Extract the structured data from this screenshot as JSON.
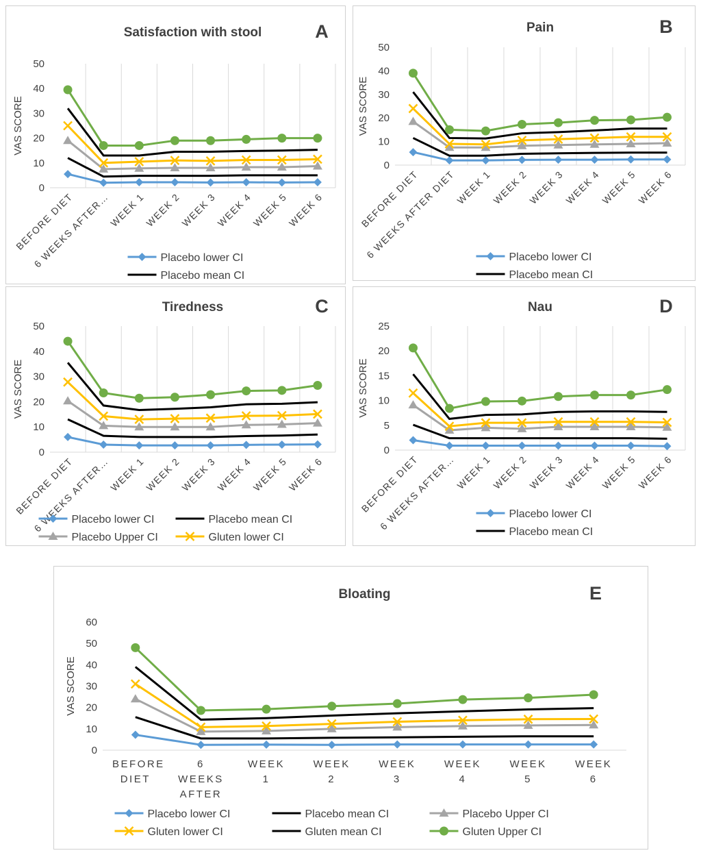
{
  "chart_data": [
    {
      "type": "line",
      "title": "Satisfaction with stool",
      "annotation": "A",
      "ylabel": "VAS SCORE",
      "categories": [
        "BEFORE DIET",
        "6 WEEKS AFTER…",
        "WEEK 1",
        "WEEK 2",
        "WEEK 3",
        "WEEK 4",
        "WEEK 5",
        "WEEK 6"
      ],
      "ylim": [
        0,
        50
      ],
      "yticks": [
        0,
        10,
        20,
        30,
        40,
        50
      ],
      "grid": "x",
      "series": [
        {
          "name": "Placebo lower CI",
          "color": "#5b9bd5",
          "marker": "diamond",
          "values": [
            5.5,
            2,
            2.2,
            2.2,
            2.1,
            2.2,
            2.1,
            2.2
          ]
        },
        {
          "name": "Placebo mean CI",
          "color": "#000000",
          "marker": "none",
          "values": [
            12,
            4.5,
            4.8,
            4.8,
            4.8,
            5,
            5,
            5
          ]
        },
        {
          "color": "#a5a5a5",
          "marker": "triangle",
          "values": [
            19,
            7.5,
            7.8,
            8,
            8,
            8.3,
            8.3,
            8.7
          ]
        },
        {
          "color": "#ffc000",
          "marker": "x",
          "values": [
            25,
            10,
            10.5,
            11,
            10.8,
            11.2,
            11.2,
            11.5
          ]
        },
        {
          "color": "#000000",
          "marker": "none",
          "values": [
            32,
            13,
            13,
            14.5,
            14.5,
            14.8,
            15,
            15.3
          ]
        },
        {
          "color": "#70ad47",
          "marker": "circle",
          "values": [
            39.5,
            17,
            17,
            19,
            19,
            19.5,
            20,
            20
          ]
        }
      ]
    },
    {
      "type": "line",
      "title": "Pain",
      "annotation": "B",
      "ylabel": "VAS SCORE",
      "categories": [
        "BEFORE DIET",
        "6 WEEKS AFTER DIET",
        "WEEK 1",
        "WEEK 2",
        "WEEK 3",
        "WEEK 4",
        "WEEK 5",
        "WEEK 6"
      ],
      "ylim": [
        0,
        50
      ],
      "yticks": [
        0,
        10,
        20,
        30,
        40,
        50
      ],
      "grid": "x",
      "series": [
        {
          "name": "Placebo lower CI",
          "color": "#5b9bd5",
          "marker": "diamond",
          "values": [
            5.5,
            2,
            2,
            2.2,
            2.3,
            2.3,
            2.4,
            2.4
          ]
        },
        {
          "name": "Placebo mean CI",
          "color": "#000000",
          "marker": "none",
          "values": [
            11.5,
            4,
            4,
            4.8,
            5,
            5.2,
            5.3,
            5.3
          ]
        },
        {
          "color": "#a5a5a5",
          "marker": "triangle",
          "values": [
            18.5,
            7.5,
            7.5,
            8.2,
            8.5,
            8.8,
            9,
            9.3
          ]
        },
        {
          "color": "#ffc000",
          "marker": "x",
          "values": [
            24,
            9,
            8.8,
            10.5,
            11,
            11.5,
            12,
            12
          ]
        },
        {
          "color": "#000000",
          "marker": "none",
          "values": [
            31,
            11.5,
            11.3,
            13.5,
            14,
            14.7,
            15.5,
            15.5
          ]
        },
        {
          "color": "#70ad47",
          "marker": "circle",
          "values": [
            39,
            15,
            14.5,
            17.3,
            18,
            19,
            19.2,
            20.3
          ]
        }
      ]
    },
    {
      "type": "line",
      "title": "Tiredness",
      "annotation": "C",
      "ylabel": "VAS SCORE",
      "categories": [
        "BEFORE DIET",
        "6 WEEKS AFTER…",
        "WEEK 1",
        "WEEK 2",
        "WEEK 3",
        "WEEK 4",
        "WEEK 5",
        "WEEK 6"
      ],
      "ylim": [
        0,
        50
      ],
      "yticks": [
        0,
        10,
        20,
        30,
        40,
        50
      ],
      "grid": "x",
      "series": [
        {
          "name": "Placebo lower CI",
          "color": "#5b9bd5",
          "marker": "diamond",
          "values": [
            6,
            3,
            2.7,
            2.7,
            2.7,
            2.9,
            3,
            3.1
          ]
        },
        {
          "name": "Placebo mean CI",
          "color": "#000000",
          "marker": "none",
          "values": [
            13,
            6.5,
            6,
            6,
            6,
            6.4,
            6.6,
            7
          ]
        },
        {
          "name": "Placebo Upper CI",
          "color": "#a5a5a5",
          "marker": "triangle",
          "values": [
            20.3,
            10.5,
            10,
            10,
            10,
            10.8,
            11,
            11.5
          ]
        },
        {
          "name": "Gluten lower CI",
          "color": "#ffc000",
          "marker": "x",
          "values": [
            27.8,
            14.3,
            13,
            13.3,
            13.5,
            14.4,
            14.5,
            15.1
          ]
        },
        {
          "color": "#000000",
          "marker": "none",
          "values": [
            35.5,
            18.5,
            16.7,
            17.2,
            17.8,
            19,
            19.2,
            19.8
          ]
        },
        {
          "color": "#70ad47",
          "marker": "circle",
          "values": [
            44,
            23.5,
            21.4,
            21.8,
            22.8,
            24.3,
            24.5,
            26.5
          ]
        }
      ]
    },
    {
      "type": "line",
      "title": "Nau",
      "annotation": "D",
      "ylabel": "VAS SCORE",
      "categories": [
        "BEFORE DIET",
        "6 WEEKS AFTER…",
        "WEEK 1",
        "WEEK 2",
        "WEEK 3",
        "WEEK 4",
        "WEEK 5",
        "WEEK 6"
      ],
      "ylim": [
        0,
        25
      ],
      "yticks": [
        0,
        5,
        10,
        15,
        20,
        25
      ],
      "grid": "x",
      "series": [
        {
          "name": "Placebo lower CI",
          "color": "#5b9bd5",
          "marker": "diamond",
          "values": [
            2,
            0.9,
            0.9,
            0.9,
            0.9,
            0.9,
            0.9,
            0.8
          ]
        },
        {
          "name": "Placebo mean CI",
          "color": "#000000",
          "marker": "none",
          "values": [
            5.1,
            2.4,
            2.4,
            2.4,
            2.4,
            2.4,
            2.4,
            2.3
          ]
        },
        {
          "color": "#a5a5a5",
          "marker": "triangle",
          "values": [
            9.1,
            4,
            4.5,
            4.3,
            4.7,
            4.7,
            4.7,
            4.6
          ]
        },
        {
          "color": "#ffc000",
          "marker": "x",
          "values": [
            11.5,
            4.8,
            5.5,
            5.5,
            5.7,
            5.7,
            5.7,
            5.6
          ]
        },
        {
          "color": "#000000",
          "marker": "none",
          "values": [
            15.3,
            6.3,
            7.1,
            7.2,
            7.7,
            7.8,
            7.8,
            7.7
          ]
        },
        {
          "color": "#70ad47",
          "marker": "circle",
          "values": [
            20.6,
            8.4,
            9.8,
            9.9,
            10.8,
            11.1,
            11.1,
            12.2
          ]
        }
      ]
    },
    {
      "type": "line",
      "title": "Bloating",
      "annotation": "E",
      "ylabel": "VAS SCORE",
      "categories": [
        "BEFORE DIET",
        "6 WEEKS AFTER DIET",
        "WEEK 1",
        "WEEK 2",
        "WEEK 3",
        "WEEK 4",
        "WEEK 5",
        "WEEK 6"
      ],
      "ylim": [
        0,
        60
      ],
      "yticks": [
        0,
        10,
        20,
        30,
        40,
        50,
        60
      ],
      "grid": "none",
      "series": [
        {
          "name": "Placebo lower CI",
          "color": "#5b9bd5",
          "marker": "diamond",
          "values": [
            7.2,
            2.5,
            2.6,
            2.5,
            2.7,
            2.7,
            2.7,
            2.7
          ]
        },
        {
          "name": "Placebo mean CI",
          "color": "#000000",
          "marker": "none",
          "values": [
            15.5,
            5.5,
            5.5,
            5.8,
            6,
            6.3,
            6.5,
            6.5
          ]
        },
        {
          "name": "Placebo Upper CI",
          "color": "#a5a5a5",
          "marker": "triangle",
          "values": [
            24,
            8.7,
            9,
            10,
            10.8,
            11.3,
            11.6,
            11.8
          ]
        },
        {
          "name": "Gluten lower CI",
          "color": "#ffc000",
          "marker": "x",
          "values": [
            31,
            10.8,
            11.3,
            12.3,
            13.3,
            14,
            14.5,
            14.6
          ]
        },
        {
          "name": "Gluten mean CI",
          "color": "#000000",
          "marker": "none",
          "values": [
            39,
            14.3,
            15,
            16.2,
            17.3,
            18.2,
            19.1,
            19.7
          ]
        },
        {
          "name": "Gluten Upper CI",
          "color": "#70ad47",
          "marker": "circle",
          "values": [
            48,
            18.6,
            19.2,
            20.6,
            21.8,
            23.7,
            24.5,
            26
          ]
        }
      ]
    }
  ]
}
